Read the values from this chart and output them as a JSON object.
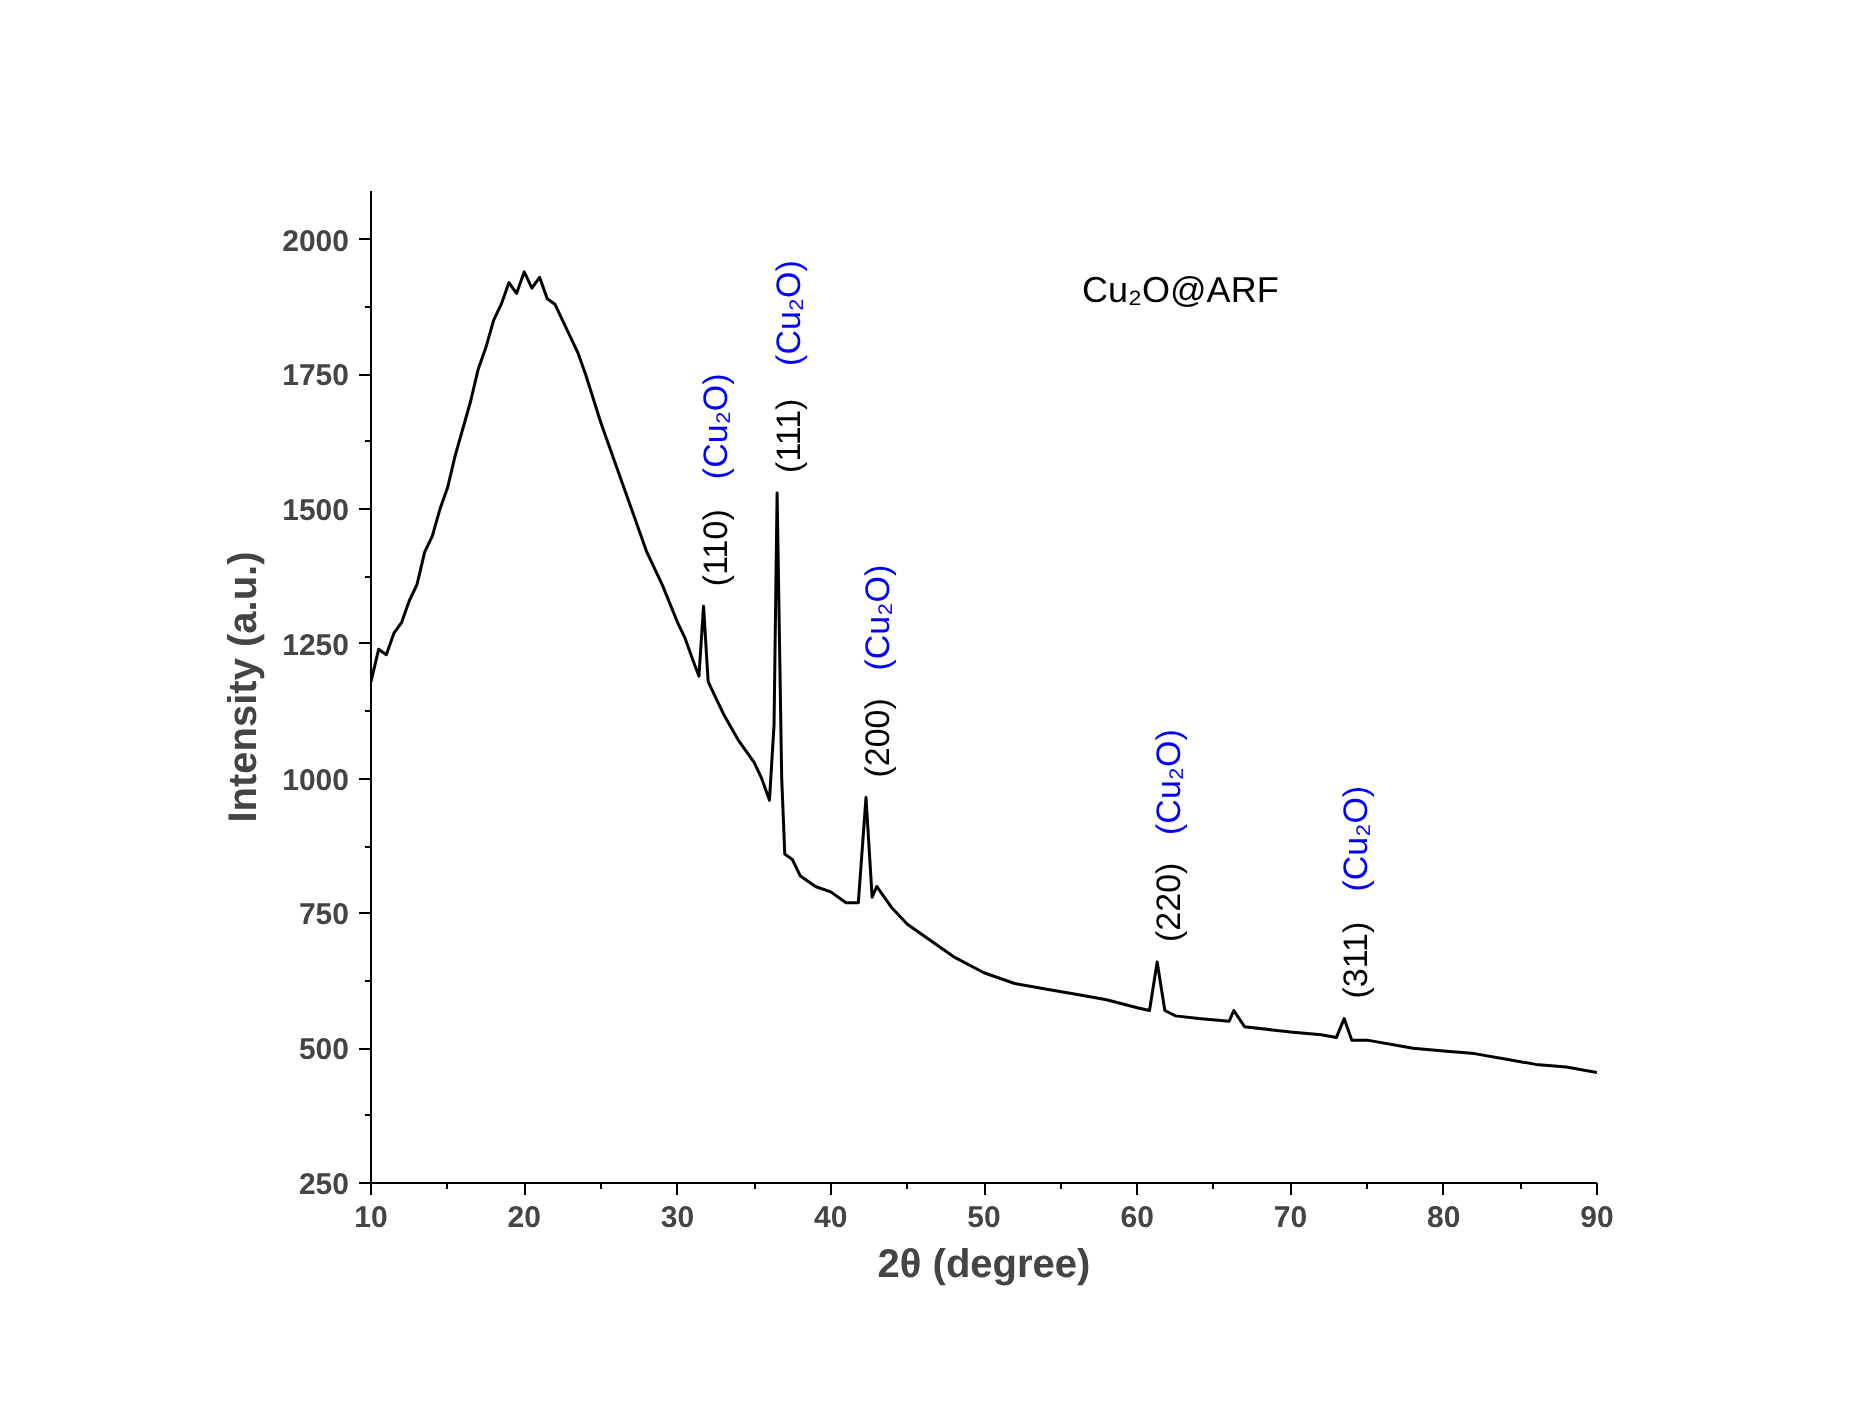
{
  "chart_data": {
    "type": "line",
    "xlabel": "2θ (degree)",
    "ylabel": "Intensity (a.u.)",
    "xlim": [
      10,
      90
    ],
    "ylim": [
      250,
      2090
    ],
    "xticks": [
      10,
      20,
      30,
      40,
      50,
      60,
      70,
      80,
      90
    ],
    "yticks": [
      250,
      500,
      750,
      1000,
      1250,
      1500,
      1750,
      2000
    ],
    "grid": false,
    "series": [
      {
        "color": "#000000",
        "x": [
          10,
          10.5,
          11,
          11.5,
          12,
          12.5,
          13,
          13.5,
          14,
          14.5,
          15,
          15.5,
          16,
          16.5,
          17,
          17.5,
          18,
          18.5,
          19,
          19.5,
          20,
          20.5,
          21,
          21.5,
          22,
          22.5,
          23,
          23.5,
          24,
          25,
          26,
          27,
          28,
          29,
          30,
          30.5,
          31,
          31.4,
          31.7,
          32,
          32.5,
          33,
          34,
          35,
          35.5,
          36,
          36.3,
          36.5,
          36.8,
          37,
          37.5,
          38,
          39,
          40,
          41,
          41.8,
          42.3,
          42.7,
          43,
          44,
          45,
          46,
          47,
          48,
          50,
          52,
          54,
          56,
          58,
          60,
          60.8,
          61.3,
          61.8,
          62.5,
          64,
          66,
          66.3,
          67,
          70,
          72,
          73,
          73.5,
          74,
          75,
          78,
          80,
          82,
          84,
          86,
          88,
          90
        ],
        "values": [
          1180,
          1240,
          1230,
          1270,
          1290,
          1330,
          1360,
          1420,
          1450,
          1500,
          1540,
          1600,
          1650,
          1700,
          1760,
          1800,
          1850,
          1880,
          1920,
          1900,
          1940,
          1910,
          1930,
          1890,
          1880,
          1850,
          1820,
          1790,
          1750,
          1660,
          1580,
          1500,
          1420,
          1360,
          1290,
          1260,
          1220,
          1190,
          1320,
          1180,
          1150,
          1120,
          1070,
          1030,
          1000,
          960,
          1100,
          1530,
          1000,
          860,
          850,
          820,
          800,
          790,
          770,
          770,
          965,
          780,
          800,
          760,
          730,
          710,
          690,
          670,
          640,
          620,
          610,
          600,
          590,
          575,
          570,
          660,
          570,
          560,
          555,
          550,
          570,
          540,
          530,
          525,
          520,
          555,
          515,
          515,
          500,
          495,
          490,
          480,
          470,
          465,
          455
        ]
      }
    ],
    "annotations": [
      {
        "text": "(110) (Cu₂O)",
        "x": 31.7,
        "y": 1320
      },
      {
        "text": "(111) (Cu₂O)",
        "x": 36.5,
        "y": 1530
      },
      {
        "text": "(200) (Cu₂O)",
        "x": 42.3,
        "y": 965
      },
      {
        "text": "(220) (Cu₂O)",
        "x": 61.3,
        "y": 660
      },
      {
        "text": "(311) (Cu₂O)",
        "x": 73.5,
        "y": 555
      },
      "Cu₂O@ARF"
    ]
  }
}
